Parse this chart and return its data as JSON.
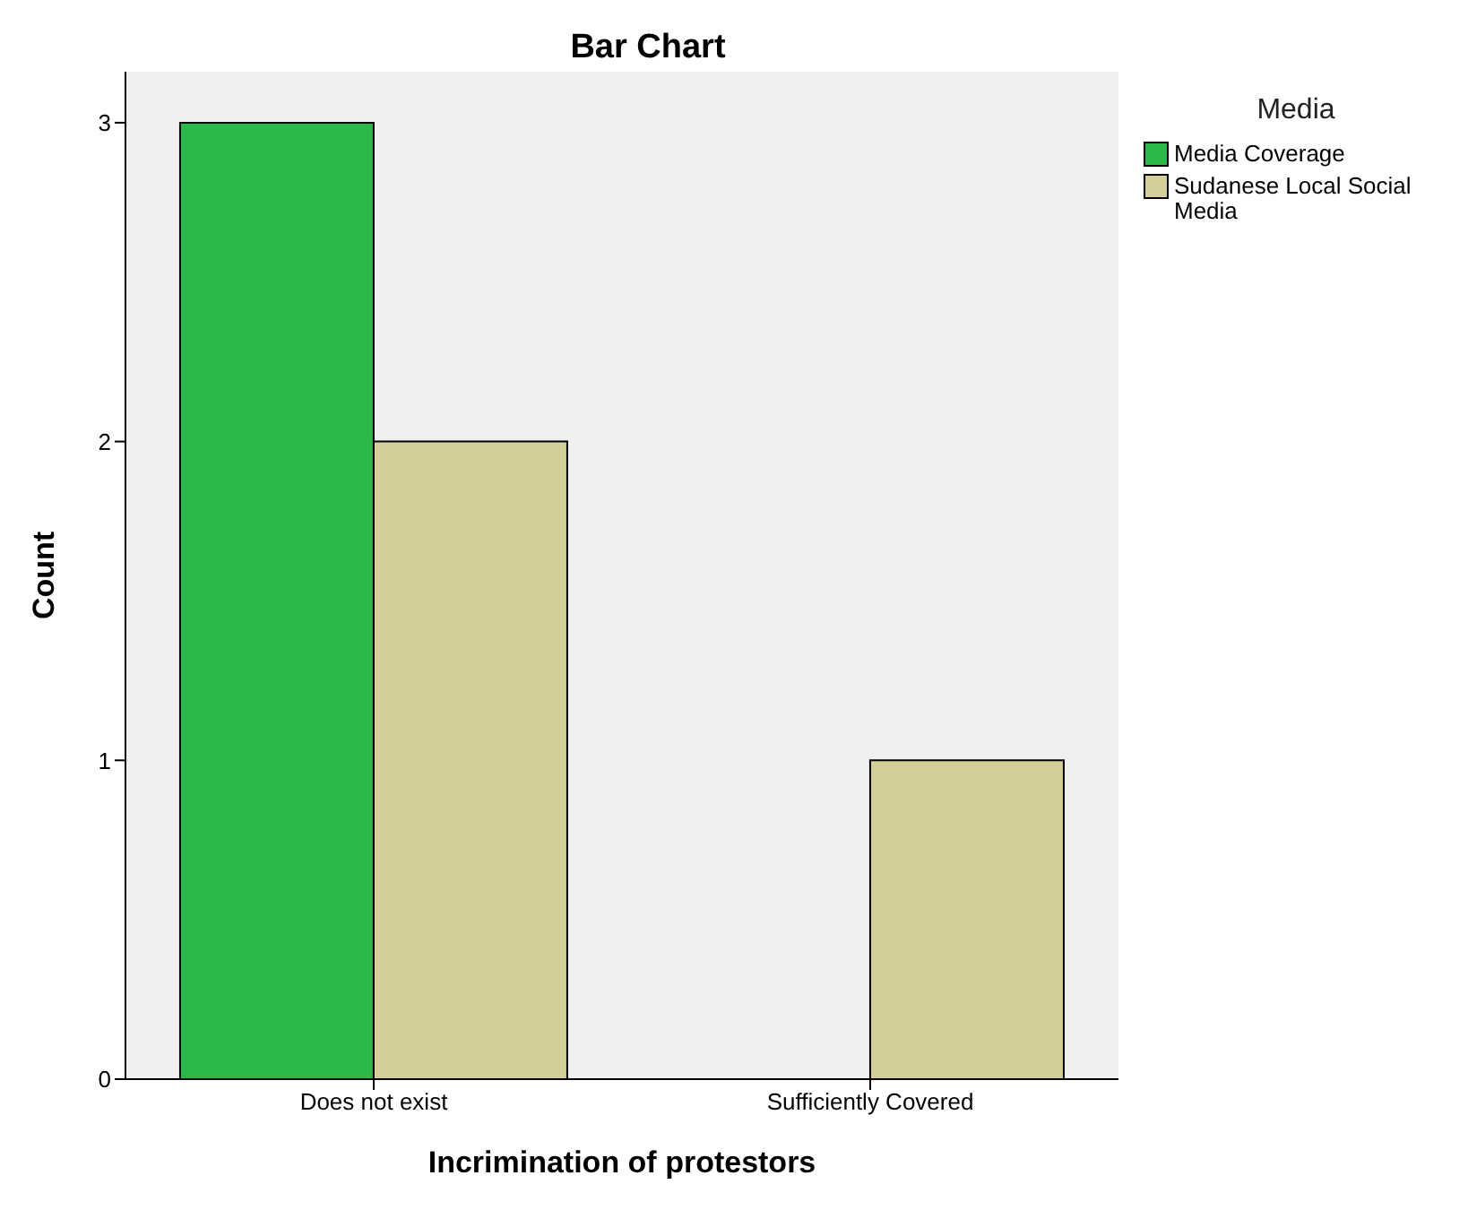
{
  "chart_data": {
    "type": "bar",
    "title": "Bar Chart",
    "xlabel": "Incrimination of protestors",
    "ylabel": "Count",
    "legend_title": "Media",
    "categories": [
      "Does not exist",
      "Sufficiently Covered"
    ],
    "series": [
      {
        "name": "Media Coverage",
        "color": "#2db84a",
        "values": [
          3,
          0
        ]
      },
      {
        "name": "Sudanese Local Social Media",
        "color": "#d4cf9a",
        "values": [
          2,
          1
        ]
      }
    ],
    "ylim": [
      0,
      3.16
    ],
    "yticks": [
      0,
      1,
      2,
      3
    ],
    "grid": false,
    "legend": "top right"
  }
}
